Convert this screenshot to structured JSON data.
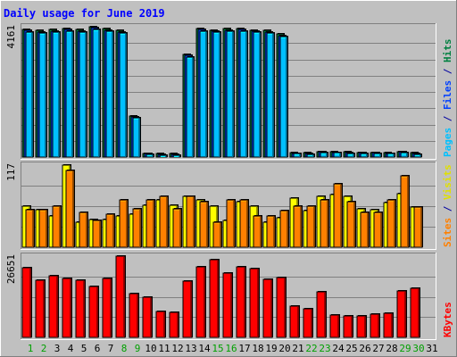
{
  "chart_data": {
    "type": "bar",
    "title": "Daily usage for June 2019",
    "categories": [
      "1",
      "2",
      "3",
      "4",
      "5",
      "6",
      "7",
      "8",
      "9",
      "10",
      "11",
      "12",
      "13",
      "14",
      "15",
      "16",
      "17",
      "18",
      "19",
      "20",
      "21",
      "22",
      "23",
      "24",
      "25",
      "26",
      "27",
      "28",
      "29",
      "30",
      "31"
    ],
    "weekend_days": [
      1,
      2,
      8,
      9,
      15,
      16,
      22,
      23,
      29,
      30
    ],
    "panels": [
      {
        "name": "hits-files-pages",
        "max_label": "4161",
        "ymax": 4161,
        "right_label_parts": [
          {
            "text": "Pages",
            "color": "#00c0ff"
          },
          {
            "text": " / ",
            "color": "#0000a0"
          },
          {
            "text": "Files",
            "color": "#0040ff"
          },
          {
            "text": " / ",
            "color": "#0000a0"
          },
          {
            "text": "Hits",
            "color": "#008040"
          }
        ],
        "series": [
          {
            "name": "Hits",
            "color": "#008040",
            "values": [
              4080,
              4050,
              4080,
              4110,
              4080,
              4161,
              4090,
              4050,
              1320,
              120,
              110,
              110,
              3280,
              4110,
              4060,
              4090,
              4110,
              4060,
              4040,
              3920,
              140,
              130,
              180,
              170,
              160,
              150,
              150,
              140,
              180,
              130,
              0
            ]
          },
          {
            "name": "Files",
            "color": "#0040ff",
            "values": [
              4040,
              4000,
              4030,
              4070,
              4030,
              4120,
              4050,
              4000,
              1290,
              100,
              90,
              90,
              3240,
              4070,
              4020,
              4050,
              4070,
              4020,
              4000,
              3880,
              120,
              110,
              160,
              150,
              140,
              130,
              130,
              120,
              160,
              110,
              0
            ]
          },
          {
            "name": "Pages",
            "color": "#00c0ff",
            "values": [
              4000,
              3950,
              3990,
              4030,
              3990,
              4080,
              4010,
              3960,
              1250,
              80,
              70,
              70,
              3200,
              4030,
              3980,
              4010,
              4030,
              3980,
              3960,
              3840,
              100,
              90,
              140,
              130,
              120,
              110,
              110,
              100,
              140,
              90,
              0
            ]
          }
        ]
      },
      {
        "name": "visits-sites",
        "max_label": "117",
        "ymax": 117,
        "right_label_parts": [
          {
            "text": "Sites",
            "color": "#ff8000"
          },
          {
            "text": " / ",
            "color": "#0000a0"
          },
          {
            "text": "Visits",
            "color": "#e0e000"
          }
        ],
        "series": [
          {
            "name": "Visits",
            "color": "#ffff00",
            "values": [
              58,
              53,
              45,
              117,
              35,
              40,
              40,
              45,
              47,
              60,
              67,
              60,
              72,
              67,
              58,
              38,
              65,
              58,
              35,
              42,
              70,
              52,
              72,
              75,
              72,
              55,
              53,
              63,
              76,
              57,
              0
            ]
          },
          {
            "name": "Sites",
            "color": "#ff8000",
            "values": [
              53,
              53,
              58,
              110,
              50,
              38,
              47,
              68,
              55,
              68,
              72,
              55,
              72,
              65,
              36,
              68,
              68,
              45,
              45,
              52,
              58,
              58,
              68,
              90,
              65,
              50,
              50,
              68,
              102,
              57,
              0
            ]
          }
        ]
      },
      {
        "name": "kbytes",
        "max_label": "26651",
        "ymax": 26651,
        "right_label_parts": [
          {
            "text": "KBytes",
            "color": "#ff0000"
          }
        ],
        "series": [
          {
            "name": "KBytes",
            "color": "#ff0000",
            "values": [
              22950,
              18750,
              20300,
              19350,
              18850,
              16600,
              19350,
              26651,
              14300,
              13100,
              8400,
              8150,
              18550,
              23050,
              25550,
              21200,
              23100,
              22550,
              19100,
              19650,
              10300,
              9450,
              15050,
              7200,
              6900,
              6900,
              7650,
              7900,
              15200,
              16100,
              0
            ]
          }
        ]
      }
    ]
  }
}
